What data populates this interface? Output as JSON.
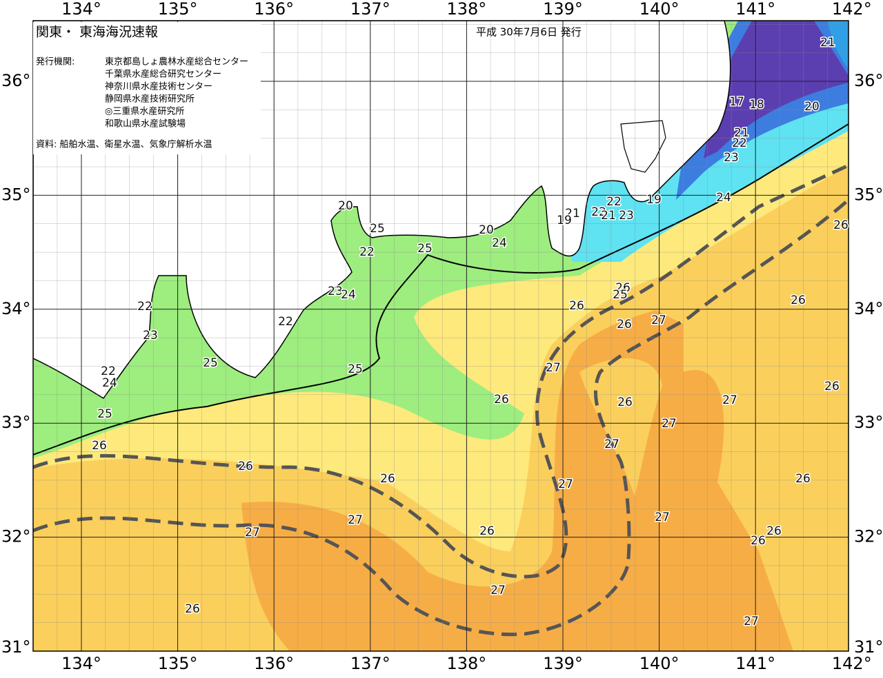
{
  "map": {
    "title": "関東・ 東海海況速報",
    "issued": "平成 30年7月6日 発行",
    "issuers_label": "発行機関:",
    "issuers": [
      "東京都島しょ農林水産総合センター",
      "千葉県水産総合研究センター",
      "神奈川県水産技術センター",
      "静岡県水産技術研究所",
      "◎三重県水産研究所",
      "和歌山県水産試験場"
    ],
    "source": "資料: 船舶水温、衛星水温、気象庁解析水温",
    "lon_ticks": [
      {
        "value": 134,
        "label": "134°"
      },
      {
        "value": 135,
        "label": "135°"
      },
      {
        "value": 136,
        "label": "136°"
      },
      {
        "value": 137,
        "label": "137°"
      },
      {
        "value": 138,
        "label": "138°"
      },
      {
        "value": 139,
        "label": "139°"
      },
      {
        "value": 140,
        "label": "140°"
      },
      {
        "value": 141,
        "label": "141°"
      },
      {
        "value": 142,
        "label": "142°"
      }
    ],
    "lat_ticks": [
      {
        "value": 31,
        "label": "31°"
      },
      {
        "value": 32,
        "label": "32°"
      },
      {
        "value": 33,
        "label": "33°"
      },
      {
        "value": 34,
        "label": "34°"
      },
      {
        "value": 35,
        "label": "35°"
      },
      {
        "value": 36,
        "label": "36°"
      }
    ],
    "contour_labels": [
      21,
      17,
      18,
      20,
      21,
      22,
      23,
      24,
      19,
      22,
      21,
      19,
      22,
      21,
      23,
      26,
      20,
      25,
      20,
      24,
      22,
      25,
      23,
      24,
      26,
      25,
      26,
      22,
      26,
      26,
      27,
      23,
      22,
      25,
      25,
      27,
      22,
      24,
      26,
      26,
      26,
      27,
      25,
      27,
      27,
      26,
      26,
      26,
      27,
      26,
      27,
      27,
      27,
      26,
      26,
      26,
      27,
      26,
      27
    ]
  }
}
